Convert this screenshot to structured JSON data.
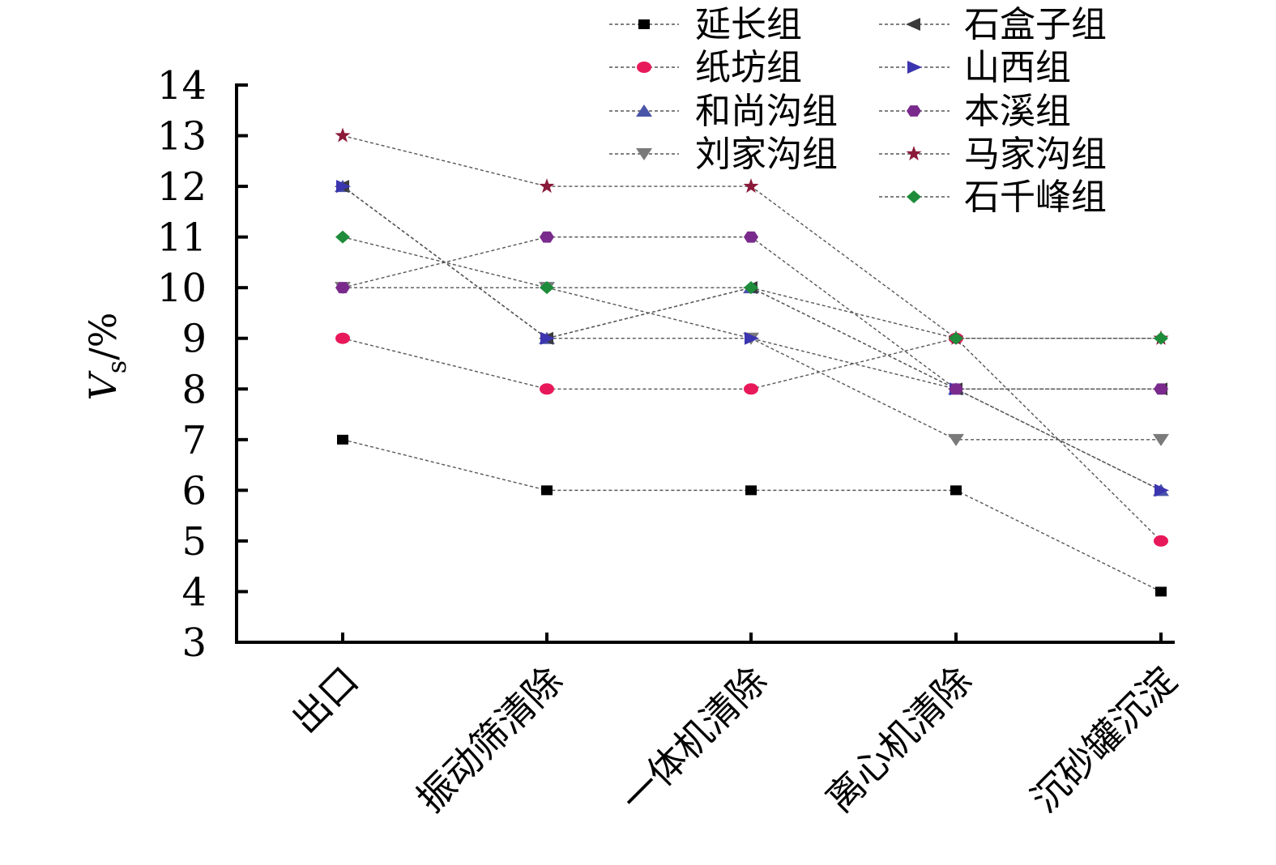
{
  "chart_data": {
    "type": "line",
    "categories": [
      "出口",
      "振动筛清除",
      "一体机清除",
      "离心机清除",
      "沉砂罐沉淀"
    ],
    "ylabel": {
      "main": "V",
      "sub": "s",
      "unit": "/%"
    },
    "ylim": [
      3,
      14
    ],
    "yticks": [
      3,
      4,
      5,
      6,
      7,
      8,
      9,
      10,
      11,
      12,
      13,
      14
    ],
    "legend_position": "top-right",
    "series": [
      {
        "name": "延长组",
        "values": [
          7,
          6,
          6,
          6,
          4
        ],
        "marker": "square",
        "color": "#000000"
      },
      {
        "name": "纸坊组",
        "values": [
          9,
          8,
          8,
          9,
          5
        ],
        "marker": "circle",
        "color": "#e8195a"
      },
      {
        "name": "和尚沟组",
        "values": [
          12,
          9,
          10,
          8,
          6
        ],
        "marker": "triangle-up",
        "color": "#4a55a8"
      },
      {
        "name": "刘家沟组",
        "values": [
          10,
          10,
          9,
          7,
          7
        ],
        "marker": "triangle-down",
        "color": "#7a7a7a"
      },
      {
        "name": "石盒子组",
        "values": [
          12,
          9,
          10,
          8,
          8
        ],
        "marker": "triangle-left",
        "color": "#3a3a3a"
      },
      {
        "name": "山西组",
        "values": [
          12,
          9,
          9,
          8,
          6
        ],
        "marker": "triangle-right",
        "color": "#3c35b0"
      },
      {
        "name": "本溪组",
        "values": [
          10,
          11,
          11,
          8,
          8
        ],
        "marker": "hexagon",
        "color": "#7a2a8c"
      },
      {
        "name": "马家沟组",
        "values": [
          13,
          12,
          12,
          9,
          9
        ],
        "marker": "star",
        "color": "#8b1a3a"
      },
      {
        "name": "石千峰组",
        "values": [
          11,
          10,
          10,
          9,
          9
        ],
        "marker": "diamond",
        "color": "#1e8c3a"
      }
    ]
  }
}
